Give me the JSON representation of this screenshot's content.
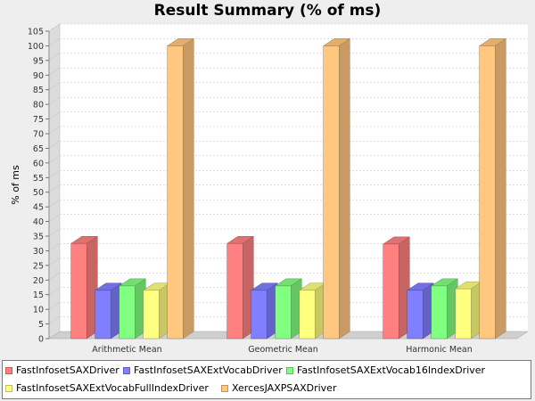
{
  "chart_data": {
    "type": "bar",
    "title": "Result Summary (% of ms)",
    "xlabel": "",
    "ylabel": "% of ms",
    "ylim": [
      0,
      105
    ],
    "yticks": [
      0,
      5,
      10,
      15,
      20,
      25,
      30,
      35,
      40,
      45,
      50,
      55,
      60,
      65,
      70,
      75,
      80,
      85,
      90,
      95,
      100,
      105
    ],
    "categories": [
      "Arithmetic Mean",
      "Geometric Mean",
      "Harmonic Mean"
    ],
    "series": [
      {
        "name": "FastInfosetSAXDriver",
        "color": "#ff8080",
        "values": [
          32.5,
          32.5,
          32.3
        ]
      },
      {
        "name": "FastInfosetSAXExtVocabDriver",
        "color": "#7f7fff",
        "values": [
          16.5,
          16.5,
          16.5
        ]
      },
      {
        "name": "FastInfosetSAXExtVocab16IndexDriver",
        "color": "#80ff80",
        "values": [
          18.0,
          18.0,
          18.0
        ]
      },
      {
        "name": "FastInfosetSAXExtVocabFullIndexDriver",
        "color": "#ffff80",
        "values": [
          16.5,
          16.5,
          17.0
        ]
      },
      {
        "name": "XercesJAXPSAXDriver",
        "color": "#ffc77f",
        "values": [
          100,
          100,
          100
        ]
      }
    ],
    "grid": true,
    "legend_position": "bottom"
  }
}
